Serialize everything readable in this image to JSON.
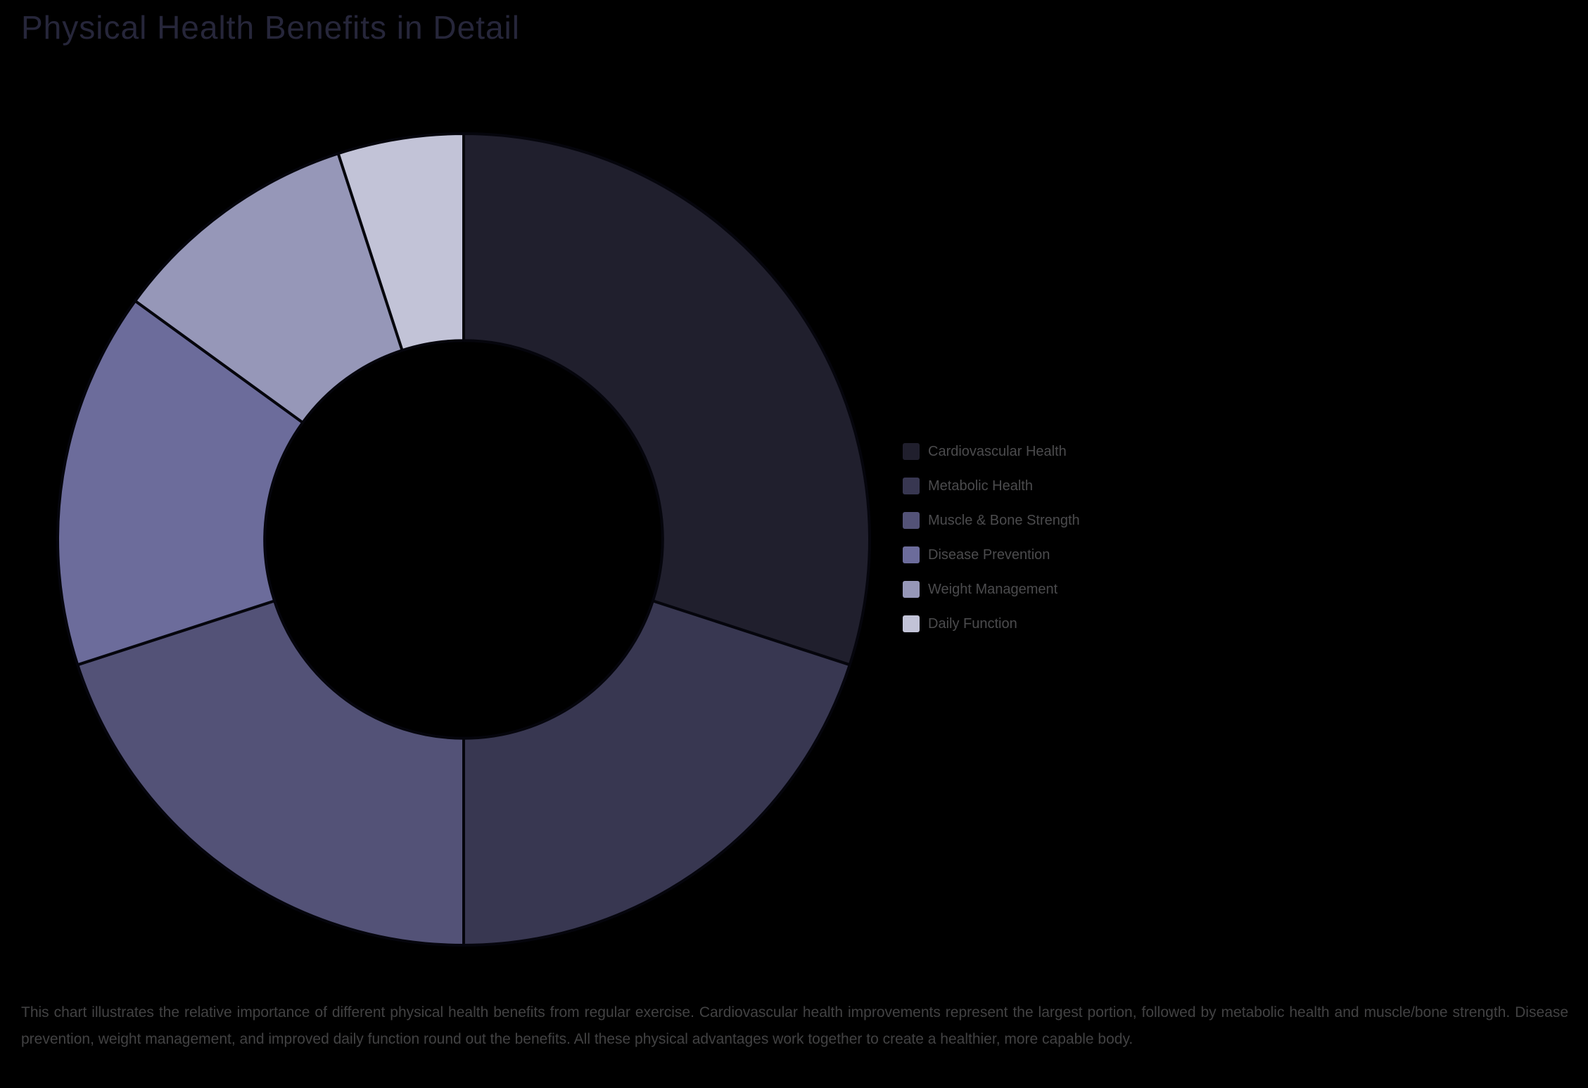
{
  "page": {
    "background_color": "#000000",
    "title": "Physical Health Benefits in Detail",
    "title_color": "#26263a",
    "caption": "This chart illustrates the relative importance of different physical health benefits from regular exercise. Cardiovascular health improvements represent the largest portion, followed by metabolic health and muscle/bone strength. Disease prevention, weight management, and improved daily function round out the benefits. All these physical advantages work together to create a healthier, more capable body.",
    "caption_color": "#424243",
    "legend_text_color": "#4b4b4d"
  },
  "chart_data": {
    "type": "pie",
    "subtype": "donut",
    "title": "Physical Health Benefits in Detail",
    "values_unit": "percent",
    "start_angle_deg_from_top": 0,
    "direction": "clockwise",
    "inner_radius_ratio": 0.49,
    "slice_border_color": "#05050c",
    "legend_position": "right",
    "segments": [
      {
        "label": "Cardiovascular Health",
        "value": 30,
        "color": "#201f2d"
      },
      {
        "label": "Metabolic Health",
        "value": 20,
        "color": "#383751"
      },
      {
        "label": "Muscle & Bone Strength",
        "value": 20,
        "color": "#535277"
      },
      {
        "label": "Disease Prevention",
        "value": 15,
        "color": "#6c6c9b"
      },
      {
        "label": "Weight Management",
        "value": 10,
        "color": "#9697b8"
      },
      {
        "label": "Daily Function",
        "value": 5,
        "color": "#c2c3d7"
      }
    ]
  }
}
